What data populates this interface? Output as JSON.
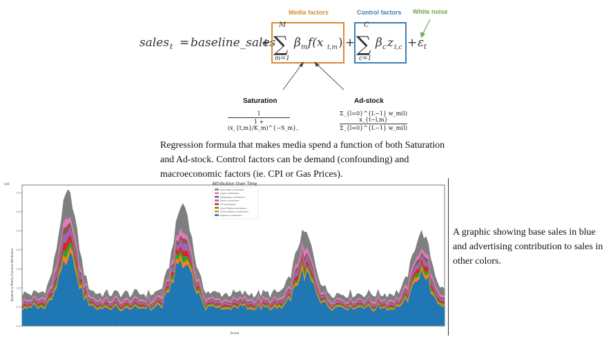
{
  "formula": {
    "labels": {
      "media": "Media factors",
      "control": "Control factors",
      "noise": "White noise"
    },
    "lhs": "sales",
    "lhs_sub": "t",
    "equals": "=",
    "baseline": "baseline_sales",
    "plus": "+",
    "sum_media_top": "M",
    "sum_media_bottom": "m=1",
    "media_term": "β",
    "media_term_sub": "m",
    "media_func": "f(x",
    "media_func_sub": "t,m",
    "media_func_close": ")",
    "sum_control_top": "C",
    "sum_control_bottom": "c=1",
    "control_term": "β",
    "control_term_sub": "c",
    "control_z": "z",
    "control_z_sub": "t,c",
    "noise_term": "ε",
    "noise_sub": "t",
    "saturation_label": "Saturation",
    "adstock_label": "Ad-stock",
    "saturation_num": "1",
    "saturation_den": "1 + (x_{t,m}/K_m)^{−S_m},",
    "adstock_num": "Σ_{l=0}^{L−1} w_m(l) x_{t−l,m}",
    "adstock_den": "Σ_{l=0}^{L−1} w_m(l)"
  },
  "caption_top": "Regression formula that makes media spend a function of both Saturation and Ad-stock. Control factors can be demand (confounding) and macroeconomic factors (ie. CPI or Gas Prices).",
  "caption_side": "A graphic showing base sales in blue and advertising contribution to sales in other colors.",
  "chart_data": {
    "type": "area",
    "title": "Attribution Over Time",
    "ylabel": "Baseline & Media Channels Attribution",
    "xlabel": "Period",
    "y_scale_note": "1e6",
    "yticks": [
      "0.0",
      "0.5",
      "1.0",
      "1.5",
      "2.0",
      "2.5",
      "3.0",
      "3.5"
    ],
    "ylim": [
      0,
      3.7
    ],
    "legend_position": "top-center",
    "colors": {
      "Direct Mail contribution": "#7f7f7f",
      "Insert contribution": "#e377c2",
      "Newspaper contribution": "#8c564b",
      "Radio contribution": "#9467bd",
      "TV contribution": "#d62728",
      "Social Media contribution": "#2ca02c",
      "Online Display contribution": "#ff7f0e",
      "baseline contribution": "#1f77b4"
    },
    "series_names": [
      "Direct Mail contribution",
      "Insert contribution",
      "Newspaper contribution",
      "Radio contribution",
      "TV contribution",
      "Social Media contribution",
      "Online Display contribution",
      "baseline contribution"
    ],
    "total_peaks": [
      {
        "period": 20,
        "value": 3.5
      },
      {
        "period": 70,
        "value": 3.2
      },
      {
        "period": 123,
        "value": 2.45
      },
      {
        "period": 174,
        "value": 2.45
      }
    ],
    "baseline_typical": 0.45,
    "total_typical": 0.85,
    "n_periods": 185
  }
}
